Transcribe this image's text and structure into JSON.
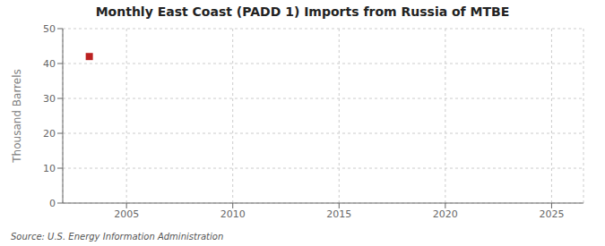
{
  "chart_data": {
    "type": "scatter",
    "title": "Monthly East Coast (PADD 1) Imports from Russia of MTBE",
    "y_label": "Thousand Barrels",
    "annotations": [
      "Source: U.S. Energy Information Administration"
    ],
    "x": [
      2003.25
    ],
    "values": [
      42
    ],
    "color": "#bb2222",
    "marker": "square",
    "xlim": [
      2002.0,
      2026.5
    ],
    "ylim": [
      0,
      50
    ],
    "xticks": [
      2005,
      2010,
      2015,
      2020,
      2025
    ],
    "yticks": [
      0,
      10,
      20,
      30,
      40,
      50
    ],
    "grid": true
  }
}
